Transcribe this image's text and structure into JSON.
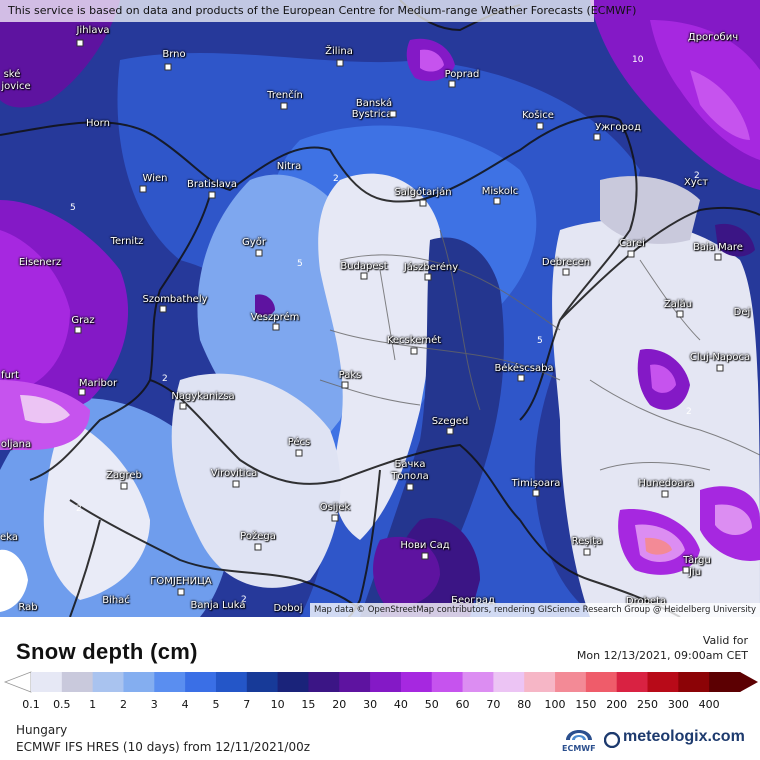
{
  "header": {
    "notice": "This service is based on data and products of the European Centre for Medium-range Weather Forecasts (ECMWF)"
  },
  "map": {
    "attribution": "Map data © OpenStreetMap contributors, rendering GIScience Research Group @ Heidelberg University",
    "cities": [
      {
        "name": "Jihlava"
      },
      {
        "name": "Brno"
      },
      {
        "name": "Žilina"
      },
      {
        "name": "Poprad"
      },
      {
        "name": "Дрогобич"
      },
      {
        "name": "ské"
      },
      {
        "name": "jovice"
      },
      {
        "name": "Trenčín"
      },
      {
        "name": "Banská"
      },
      {
        "name": "Bystrica"
      },
      {
        "name": "Košice"
      },
      {
        "name": "Ужгород"
      },
      {
        "name": "Horn"
      },
      {
        "name": "Nitra"
      },
      {
        "name": "Wien"
      },
      {
        "name": "Bratislava"
      },
      {
        "name": "Salgótarján"
      },
      {
        "name": "Miskolc"
      },
      {
        "name": "Хуст"
      },
      {
        "name": "Ternitz"
      },
      {
        "name": "Győr"
      },
      {
        "name": "Carei"
      },
      {
        "name": "Baia Mare"
      },
      {
        "name": "Eisenerz"
      },
      {
        "name": "Budapest"
      },
      {
        "name": "Jászberény"
      },
      {
        "name": "Debrecen"
      },
      {
        "name": "Szombathely"
      },
      {
        "name": "Zalău"
      },
      {
        "name": "Graz"
      },
      {
        "name": "Veszprém"
      },
      {
        "name": "Dej"
      },
      {
        "name": "Kecskemét"
      },
      {
        "name": "Cluj-Napoca"
      },
      {
        "name": "furt"
      },
      {
        "name": "Maribor"
      },
      {
        "name": "Paks"
      },
      {
        "name": "Békéscsaba"
      },
      {
        "name": "Nagykanizsa"
      },
      {
        "name": "Szeged"
      },
      {
        "name": "oljana"
      },
      {
        "name": "Pécs"
      },
      {
        "name": "Zagreb"
      },
      {
        "name": "Virovitica"
      },
      {
        "name": "Бачка"
      },
      {
        "name": "Топола"
      },
      {
        "name": "Timișoara"
      },
      {
        "name": "Hunedoara"
      },
      {
        "name": "Osijek"
      },
      {
        "name": "Požega"
      },
      {
        "name": "eka"
      },
      {
        "name": "Нови Сад"
      },
      {
        "name": "Reșița"
      },
      {
        "name": "Târgu"
      },
      {
        "name": "Jiu"
      },
      {
        "name": "ГОМЈЕНИЦА"
      },
      {
        "name": "Bihać"
      },
      {
        "name": "Banja Luka"
      },
      {
        "name": "Doboj"
      },
      {
        "name": "Београд"
      },
      {
        "name": "Drobeta"
      },
      {
        "name": "Rab"
      }
    ]
  },
  "legend": {
    "title": "Snow depth (cm)",
    "valid_label": "Valid for",
    "valid_date": "Mon 12/13/2021, 09:00am CET",
    "ticks": [
      "0.1",
      "0.5",
      "1",
      "2",
      "3",
      "4",
      "5",
      "7",
      "10",
      "15",
      "20",
      "30",
      "40",
      "50",
      "60",
      "70",
      "80",
      "100",
      "150",
      "200",
      "250",
      "300",
      "400"
    ],
    "colors": [
      "#e6e8f5",
      "#c9c9dc",
      "#a9c3ef",
      "#84aef0",
      "#5a8ef0",
      "#3a6fe6",
      "#2456c8",
      "#173a98",
      "#1a237a",
      "#3b1585",
      "#5e13a0",
      "#8419c6",
      "#a628e0",
      "#c653ee",
      "#dc8df2",
      "#ecc4f4",
      "#f6b6c6",
      "#f38a96",
      "#ef5c6a",
      "#d92242",
      "#b80a18",
      "#8c0306",
      "#5c0002"
    ],
    "region": "Hungary",
    "model": "ECMWF IFS HRES (10 days) from 12/11/2021/00z",
    "ecmwf_logo": "ECMWF",
    "brand": "meteologix.com"
  }
}
